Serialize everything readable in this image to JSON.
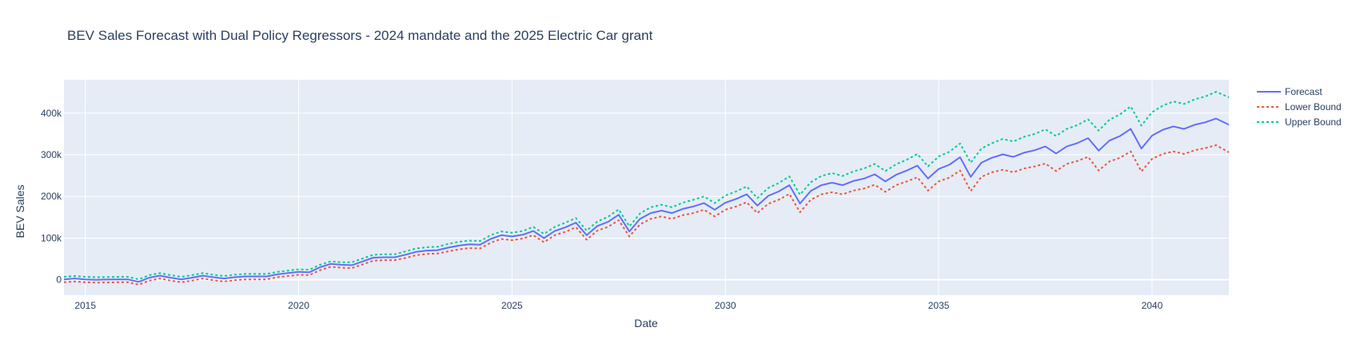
{
  "chart_data": {
    "type": "line",
    "title": "BEV Sales Forecast with Dual Policy Regressors - 2024 mandate and the 2025 Electric Car grant",
    "xlabel": "Date",
    "ylabel": "BEV Sales",
    "x_range": [
      2014.5,
      2041.8
    ],
    "y_range": [
      -37000,
      480000
    ],
    "x_ticks": [
      2015,
      2020,
      2025,
      2030,
      2035,
      2040
    ],
    "x_tick_labels": [
      "2015",
      "2020",
      "2025",
      "2030",
      "2035",
      "2040"
    ],
    "y_ticks": [
      0,
      100000,
      200000,
      300000,
      400000
    ],
    "y_tick_labels": [
      "0",
      "100k",
      "200k",
      "300k",
      "400k"
    ],
    "grid": true,
    "legend_position": "right",
    "colors": {
      "plot_bg": "#e5ecf6",
      "grid": "#ffffff",
      "forecast": "#636efa",
      "lower": "#ef553b",
      "upper": "#00cc96",
      "text": "#2a3f5f"
    },
    "series": [
      {
        "name": "Forecast",
        "dash": "solid",
        "x": [
          2014.5,
          2014.75,
          2015.0,
          2015.25,
          2015.5,
          2015.75,
          2016.0,
          2016.25,
          2016.5,
          2016.75,
          2017.0,
          2017.25,
          2017.5,
          2017.75,
          2018.0,
          2018.25,
          2018.5,
          2018.75,
          2019.0,
          2019.25,
          2019.5,
          2019.75,
          2020.0,
          2020.25,
          2020.5,
          2020.75,
          2021.0,
          2021.25,
          2021.5,
          2021.75,
          2022.0,
          2022.25,
          2022.5,
          2022.75,
          2023.0,
          2023.25,
          2023.5,
          2023.75,
          2024.0,
          2024.25,
          2024.5,
          2024.75,
          2025.0,
          2025.25,
          2025.5,
          2025.75,
          2026.0,
          2026.25,
          2026.5,
          2026.75,
          2027.0,
          2027.25,
          2027.5,
          2027.75,
          2028.0,
          2028.25,
          2028.5,
          2028.75,
          2029.0,
          2029.25,
          2029.5,
          2029.75,
          2030.0,
          2030.25,
          2030.5,
          2030.75,
          2031.0,
          2031.25,
          2031.5,
          2031.75,
          2032.0,
          2032.25,
          2032.5,
          2032.75,
          2033.0,
          2033.25,
          2033.5,
          2033.75,
          2034.0,
          2034.25,
          2034.5,
          2034.75,
          2035.0,
          2035.25,
          2035.5,
          2035.75,
          2036.0,
          2036.25,
          2036.5,
          2036.75,
          2037.0,
          2037.25,
          2037.5,
          2037.75,
          2038.0,
          2038.25,
          2038.5,
          2038.75,
          2039.0,
          2039.25,
          2039.5,
          2039.75,
          2040.0,
          2040.25,
          2040.5,
          2040.75,
          2041.0,
          2041.25,
          2041.5,
          2041.8
        ],
        "values": [
          1000,
          3000,
          1000,
          0,
          500,
          1000,
          1000,
          -5000,
          5000,
          10000,
          5000,
          1000,
          5000,
          10000,
          6000,
          3000,
          6000,
          8000,
          8000,
          8000,
          13000,
          16000,
          19000,
          18000,
          30000,
          38000,
          36000,
          35000,
          44000,
          53000,
          54000,
          54000,
          60000,
          67000,
          70000,
          71000,
          77000,
          82000,
          85000,
          84000,
          98000,
          107000,
          104000,
          108000,
          117000,
          100000,
          117000,
          126000,
          137000,
          107000,
          129000,
          139000,
          156000,
          116000,
          146000,
          160000,
          166000,
          160000,
          170000,
          176000,
          184000,
          168000,
          185000,
          194000,
          205000,
          178000,
          201000,
          212000,
          227000,
          183000,
          213000,
          227000,
          233000,
          227000,
          237000,
          243000,
          253000,
          236000,
          252000,
          262000,
          274000,
          243000,
          266000,
          276000,
          294000,
          247000,
          281000,
          293000,
          301000,
          295000,
          305000,
          311000,
          320000,
          303000,
          320000,
          328000,
          340000,
          310000,
          334000,
          345000,
          362000,
          315000,
          346000,
          360000,
          368000,
          362000,
          372000,
          378000,
          387000,
          372000
        ]
      },
      {
        "name": "Lower Bound",
        "dash": "dot",
        "x": [
          2014.5,
          2014.75,
          2015.0,
          2015.25,
          2015.5,
          2015.75,
          2016.0,
          2016.25,
          2016.5,
          2016.75,
          2017.0,
          2017.25,
          2017.5,
          2017.75,
          2018.0,
          2018.25,
          2018.5,
          2018.75,
          2019.0,
          2019.25,
          2019.5,
          2019.75,
          2020.0,
          2020.25,
          2020.5,
          2020.75,
          2021.0,
          2021.25,
          2021.5,
          2021.75,
          2022.0,
          2022.25,
          2022.5,
          2022.75,
          2023.0,
          2023.25,
          2023.5,
          2023.75,
          2024.0,
          2024.25,
          2024.5,
          2024.75,
          2025.0,
          2025.25,
          2025.5,
          2025.75,
          2026.0,
          2026.25,
          2026.5,
          2026.75,
          2027.0,
          2027.25,
          2027.5,
          2027.75,
          2028.0,
          2028.25,
          2028.5,
          2028.75,
          2029.0,
          2029.25,
          2029.5,
          2029.75,
          2030.0,
          2030.25,
          2030.5,
          2030.75,
          2031.0,
          2031.25,
          2031.5,
          2031.75,
          2032.0,
          2032.25,
          2032.5,
          2032.75,
          2033.0,
          2033.25,
          2033.5,
          2033.75,
          2034.0,
          2034.25,
          2034.5,
          2034.75,
          2035.0,
          2035.25,
          2035.5,
          2035.75,
          2036.0,
          2036.25,
          2036.5,
          2036.75,
          2037.0,
          2037.25,
          2037.5,
          2037.75,
          2038.0,
          2038.25,
          2038.5,
          2038.75,
          2039.0,
          2039.25,
          2039.5,
          2039.75,
          2040.0,
          2040.25,
          2040.5,
          2040.75,
          2041.0,
          2041.25,
          2041.5,
          2041.8
        ],
        "values": [
          -6000,
          -4000,
          -6000,
          -7000,
          -6500,
          -6000,
          -6000,
          -12000,
          -2000,
          3000,
          -2000,
          -6000,
          -2000,
          3000,
          -1000,
          -4000,
          -1000,
          1000,
          1000,
          1000,
          6000,
          9000,
          12000,
          11000,
          23000,
          31000,
          29000,
          28000,
          37000,
          46000,
          47000,
          47000,
          52000,
          59000,
          62000,
          63000,
          68000,
          73000,
          76000,
          75000,
          89000,
          98000,
          95000,
          99000,
          107000,
          90000,
          107000,
          115000,
          126000,
          96000,
          118000,
          127000,
          143000,
          104000,
          133000,
          146000,
          152000,
          146000,
          155000,
          160000,
          168000,
          152000,
          168000,
          176000,
          186000,
          160000,
          182000,
          192000,
          206000,
          162000,
          192000,
          205000,
          210000,
          205000,
          214000,
          219000,
          228000,
          211000,
          227000,
          236000,
          246000,
          214000,
          236000,
          245000,
          262000,
          213000,
          247000,
          258000,
          264000,
          258000,
          267000,
          272000,
          279000,
          261000,
          278000,
          285000,
          295000,
          262000,
          284000,
          293000,
          308000,
          260000,
          290000,
          302000,
          308000,
          302000,
          311000,
          316000,
          323000,
          306000
        ]
      },
      {
        "name": "Upper Bound",
        "dash": "dot",
        "x": [
          2014.5,
          2014.75,
          2015.0,
          2015.25,
          2015.5,
          2015.75,
          2016.0,
          2016.25,
          2016.5,
          2016.75,
          2017.0,
          2017.25,
          2017.5,
          2017.75,
          2018.0,
          2018.25,
          2018.5,
          2018.75,
          2019.0,
          2019.25,
          2019.5,
          2019.75,
          2020.0,
          2020.25,
          2020.5,
          2020.75,
          2021.0,
          2021.25,
          2021.5,
          2021.75,
          2022.0,
          2022.25,
          2022.5,
          2022.75,
          2023.0,
          2023.25,
          2023.5,
          2023.75,
          2024.0,
          2024.25,
          2024.5,
          2024.75,
          2025.0,
          2025.25,
          2025.5,
          2025.75,
          2026.0,
          2026.25,
          2026.5,
          2026.75,
          2027.0,
          2027.25,
          2027.5,
          2027.75,
          2028.0,
          2028.25,
          2028.5,
          2028.75,
          2029.0,
          2029.25,
          2029.5,
          2029.75,
          2030.0,
          2030.25,
          2030.5,
          2030.75,
          2031.0,
          2031.25,
          2031.5,
          2031.75,
          2032.0,
          2032.25,
          2032.5,
          2032.75,
          2033.0,
          2033.25,
          2033.5,
          2033.75,
          2034.0,
          2034.25,
          2034.5,
          2034.75,
          2035.0,
          2035.25,
          2035.5,
          2035.75,
          2036.0,
          2036.25,
          2036.5,
          2036.75,
          2037.0,
          2037.25,
          2037.5,
          2037.75,
          2038.0,
          2038.25,
          2038.5,
          2038.75,
          2039.0,
          2039.25,
          2039.5,
          2039.75,
          2040.0,
          2040.25,
          2040.5,
          2040.75,
          2041.0,
          2041.25,
          2041.5,
          2041.8
        ],
        "values": [
          7000,
          9000,
          7000,
          6000,
          6500,
          7000,
          7000,
          1000,
          11000,
          16000,
          11000,
          7000,
          11000,
          16000,
          12000,
          9000,
          12000,
          14000,
          14000,
          14000,
          19000,
          22000,
          25000,
          24000,
          36000,
          44000,
          42000,
          42000,
          51000,
          60000,
          61000,
          61000,
          68000,
          75000,
          78000,
          79000,
          86000,
          91000,
          94000,
          93000,
          107000,
          116000,
          113000,
          117000,
          127000,
          110000,
          127000,
          137000,
          148000,
          118000,
          140000,
          151000,
          169000,
          128000,
          159000,
          174000,
          180000,
          174000,
          185000,
          192000,
          200000,
          184000,
          202000,
          212000,
          224000,
          196000,
          220000,
          232000,
          248000,
          204000,
          234000,
          249000,
          256000,
          249000,
          260000,
          267000,
          278000,
          261000,
          277000,
          288000,
          302000,
          272000,
          296000,
          307000,
          327000,
          281000,
          315000,
          328000,
          338000,
          332000,
          343000,
          350000,
          361000,
          345000,
          362000,
          371000,
          385000,
          358000,
          384000,
          397000,
          416000,
          370000,
          402000,
          418000,
          428000,
          422000,
          433000,
          440000,
          451000,
          438000
        ]
      }
    ]
  }
}
